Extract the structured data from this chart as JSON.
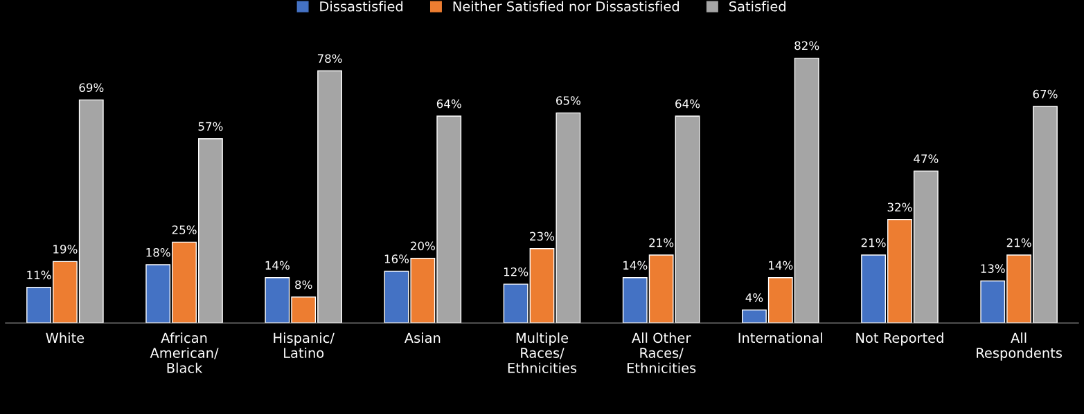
{
  "chart_data": {
    "type": "bar",
    "categories": [
      "White",
      "African\nAmerican/\nBlack",
      "Hispanic/\nLatino",
      "Asian",
      "Multiple\nRaces/\nEthnicities",
      "All Other\nRaces/\nEthnicities",
      "International",
      "Not Reported",
      "All\nRespondents"
    ],
    "series": [
      {
        "name": "Dissastisfied",
        "color": "#4472c4",
        "values": [
          11,
          18,
          14,
          16,
          12,
          14,
          4,
          21,
          13
        ],
        "value_labels": [
          "11%",
          "18%",
          "14%",
          "16%",
          "12%",
          "14%",
          "4%",
          "21%",
          "13%"
        ]
      },
      {
        "name": "Neither Satisfied nor Dissastisfied",
        "color": "#ed7d31",
        "values": [
          19,
          25,
          8,
          20,
          23,
          21,
          14,
          32,
          21
        ],
        "value_labels": [
          "19%",
          "25%",
          "8%",
          "20%",
          "23%",
          "21%",
          "14%",
          "32%",
          "21%"
        ]
      },
      {
        "name": "Satisfied",
        "color": "#a5a5a5",
        "values": [
          69,
          57,
          78,
          64,
          65,
          64,
          82,
          47,
          67
        ],
        "value_labels": [
          "69%",
          "57%",
          "78%",
          "64%",
          "65%",
          "64%",
          "82%",
          "47%",
          "67%"
        ]
      }
    ],
    "legend": "top",
    "tick_labels": "x",
    "grid": false
  }
}
